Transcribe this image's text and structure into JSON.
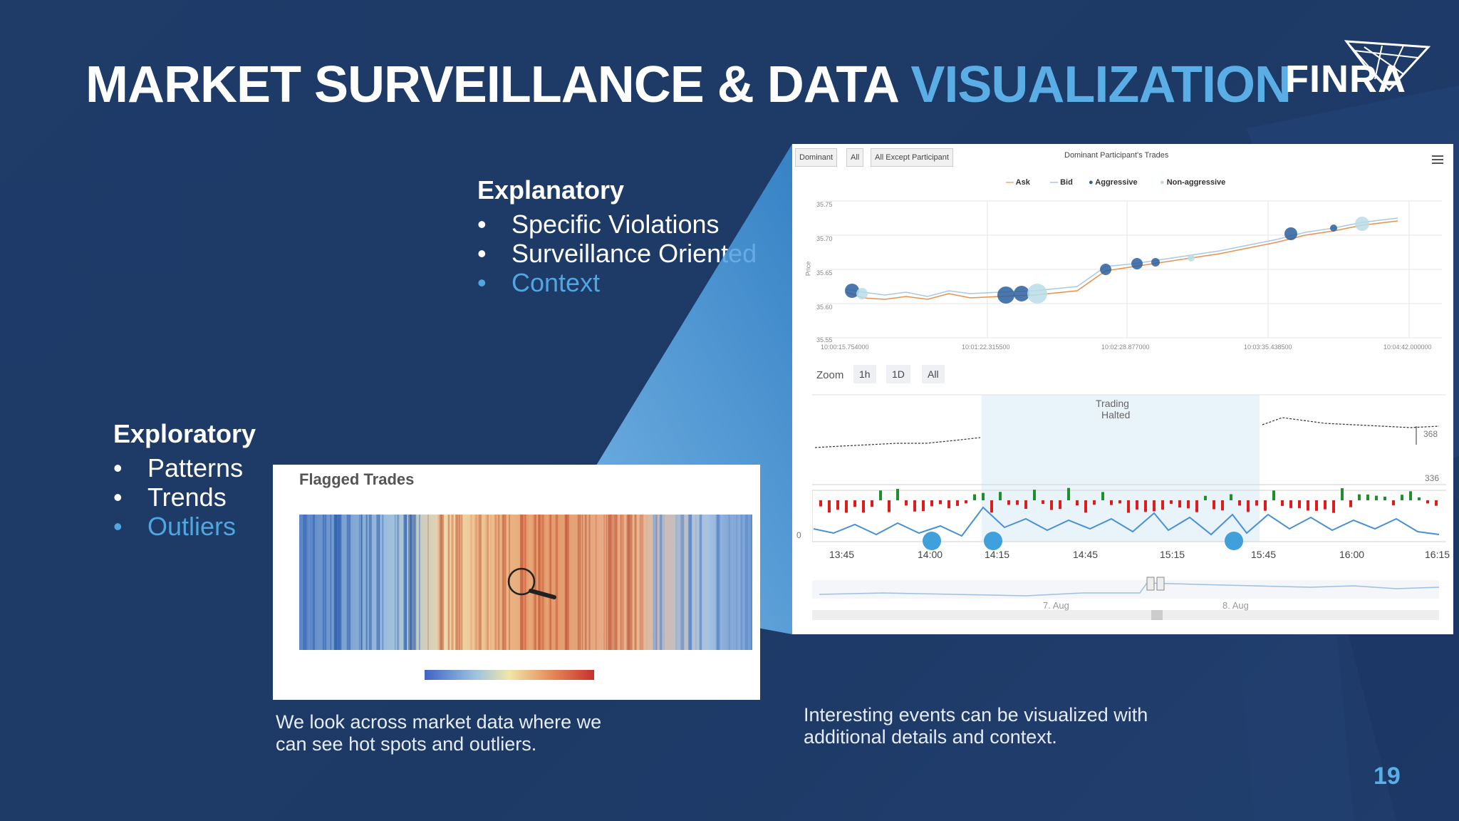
{
  "title": {
    "main": "MARKET SURVEILLANCE & DATA",
    "accent": "VISUALIZATION"
  },
  "logo": {
    "text": "FINRA",
    "name": "finra-logo"
  },
  "explanatory": {
    "heading": "Explanatory",
    "items": [
      "Specific Violations",
      "Surveillance Oriented",
      "Context"
    ]
  },
  "exploratory": {
    "heading": "Exploratory",
    "items": [
      "Patterns",
      "Trends",
      "Outliers"
    ]
  },
  "heatmap": {
    "title": "Flagged Trades"
  },
  "caption_left": {
    "line1": "We look across market data where we",
    "line2": "can see hot spots and outliers."
  },
  "caption_right": {
    "line1": "Interesting events can be visualized with",
    "line2": "additional details and context."
  },
  "page_number": "19",
  "chart": {
    "tabs": [
      "Dominant",
      "All",
      "All Except Participant"
    ],
    "title": "Dominant Participant's Trades",
    "legend": [
      "Ask",
      "Bid",
      "Aggressive",
      "Non-aggressive"
    ],
    "ylabel": "Price",
    "yticks": [
      "35.75",
      "35.70",
      "35.65",
      "35.60",
      "35.55"
    ],
    "xticks": [
      "10:00:15.754000",
      "10:01:22.315500",
      "10:02:28.877000",
      "10:03:35.438500",
      "10:04:42.000000"
    ],
    "zoom_label": "Zoom",
    "zoom_buttons": [
      "1h",
      "1D",
      "All"
    ],
    "halt_label_1": "Trading",
    "halt_label_2": "Halted",
    "price_right_high": "368",
    "price_right_low": "336",
    "zero_label": "0",
    "times": [
      "13:45",
      "14:00",
      "14:15",
      "14:45",
      "15:15",
      "15:45",
      "16:00",
      "16:15"
    ],
    "nav_dates": [
      "7. Aug",
      "8. Aug"
    ]
  },
  "colors": {
    "accent": "#5aaee5",
    "background": "#1e3a66",
    "highlight_bullet": "#4fa6e0"
  }
}
